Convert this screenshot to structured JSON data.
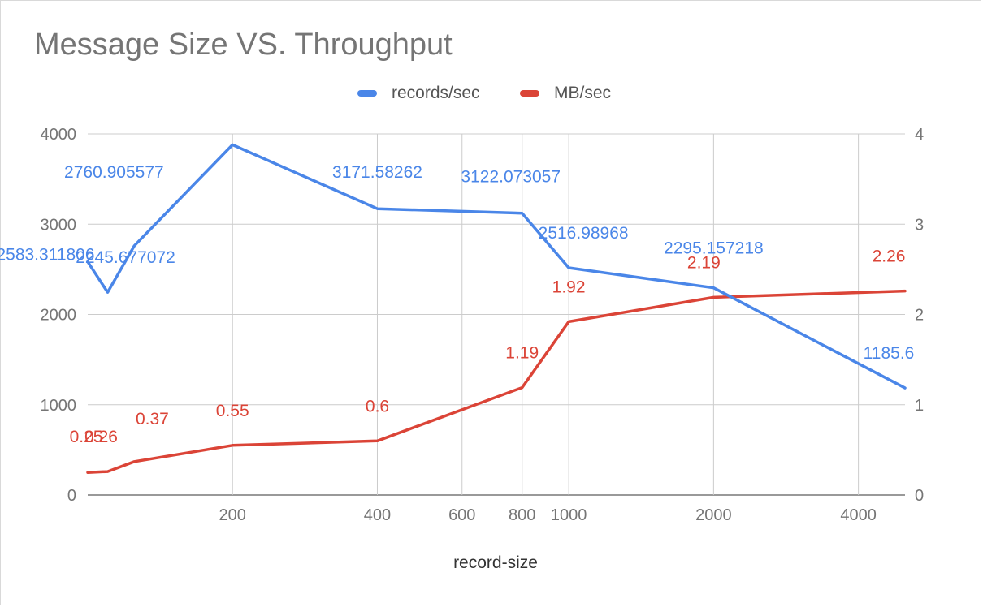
{
  "chart_data": {
    "type": "line",
    "title": "Message Size VS. Throughput",
    "xlabel": "record-size",
    "x_scale": "log",
    "x": [
      100,
      110,
      125,
      200,
      400,
      800,
      1000,
      2000,
      5000
    ],
    "x_ticks": [
      200,
      400,
      600,
      800,
      1000,
      2000,
      4000
    ],
    "xlim": [
      100,
      5000
    ],
    "y_left": {
      "ylim": [
        0,
        4000
      ],
      "ticks": [
        0,
        1000,
        2000,
        3000,
        4000
      ]
    },
    "y_right": {
      "ylim": [
        0,
        4
      ],
      "ticks": [
        0,
        1,
        2,
        3,
        4
      ]
    },
    "grid": true,
    "legend_position": "top",
    "series": [
      {
        "name": "records/sec",
        "axis": "left",
        "color": "#4a86e8",
        "values": [
          2583.311806,
          2245.677072,
          2760.905577,
          3880,
          3171.58262,
          3122.073057,
          2516.98968,
          2295.157218,
          1185.6
        ],
        "labels": [
          "2583.311806",
          "2245.677072",
          "2760.905577",
          "3880",
          "3171.58262",
          "3122.073057",
          "2516.98968",
          "2295.157218",
          "1185.6"
        ]
      },
      {
        "name": "MB/sec",
        "axis": "right",
        "color": "#db4437",
        "values": [
          0.25,
          0.26,
          0.37,
          0.55,
          0.6,
          1.19,
          1.92,
          2.19,
          2.26
        ],
        "labels": [
          "0.25",
          "0.26",
          "0.37",
          "0.55",
          "0.6",
          "1.19",
          "1.92",
          "2.19",
          "2.26"
        ]
      }
    ]
  }
}
